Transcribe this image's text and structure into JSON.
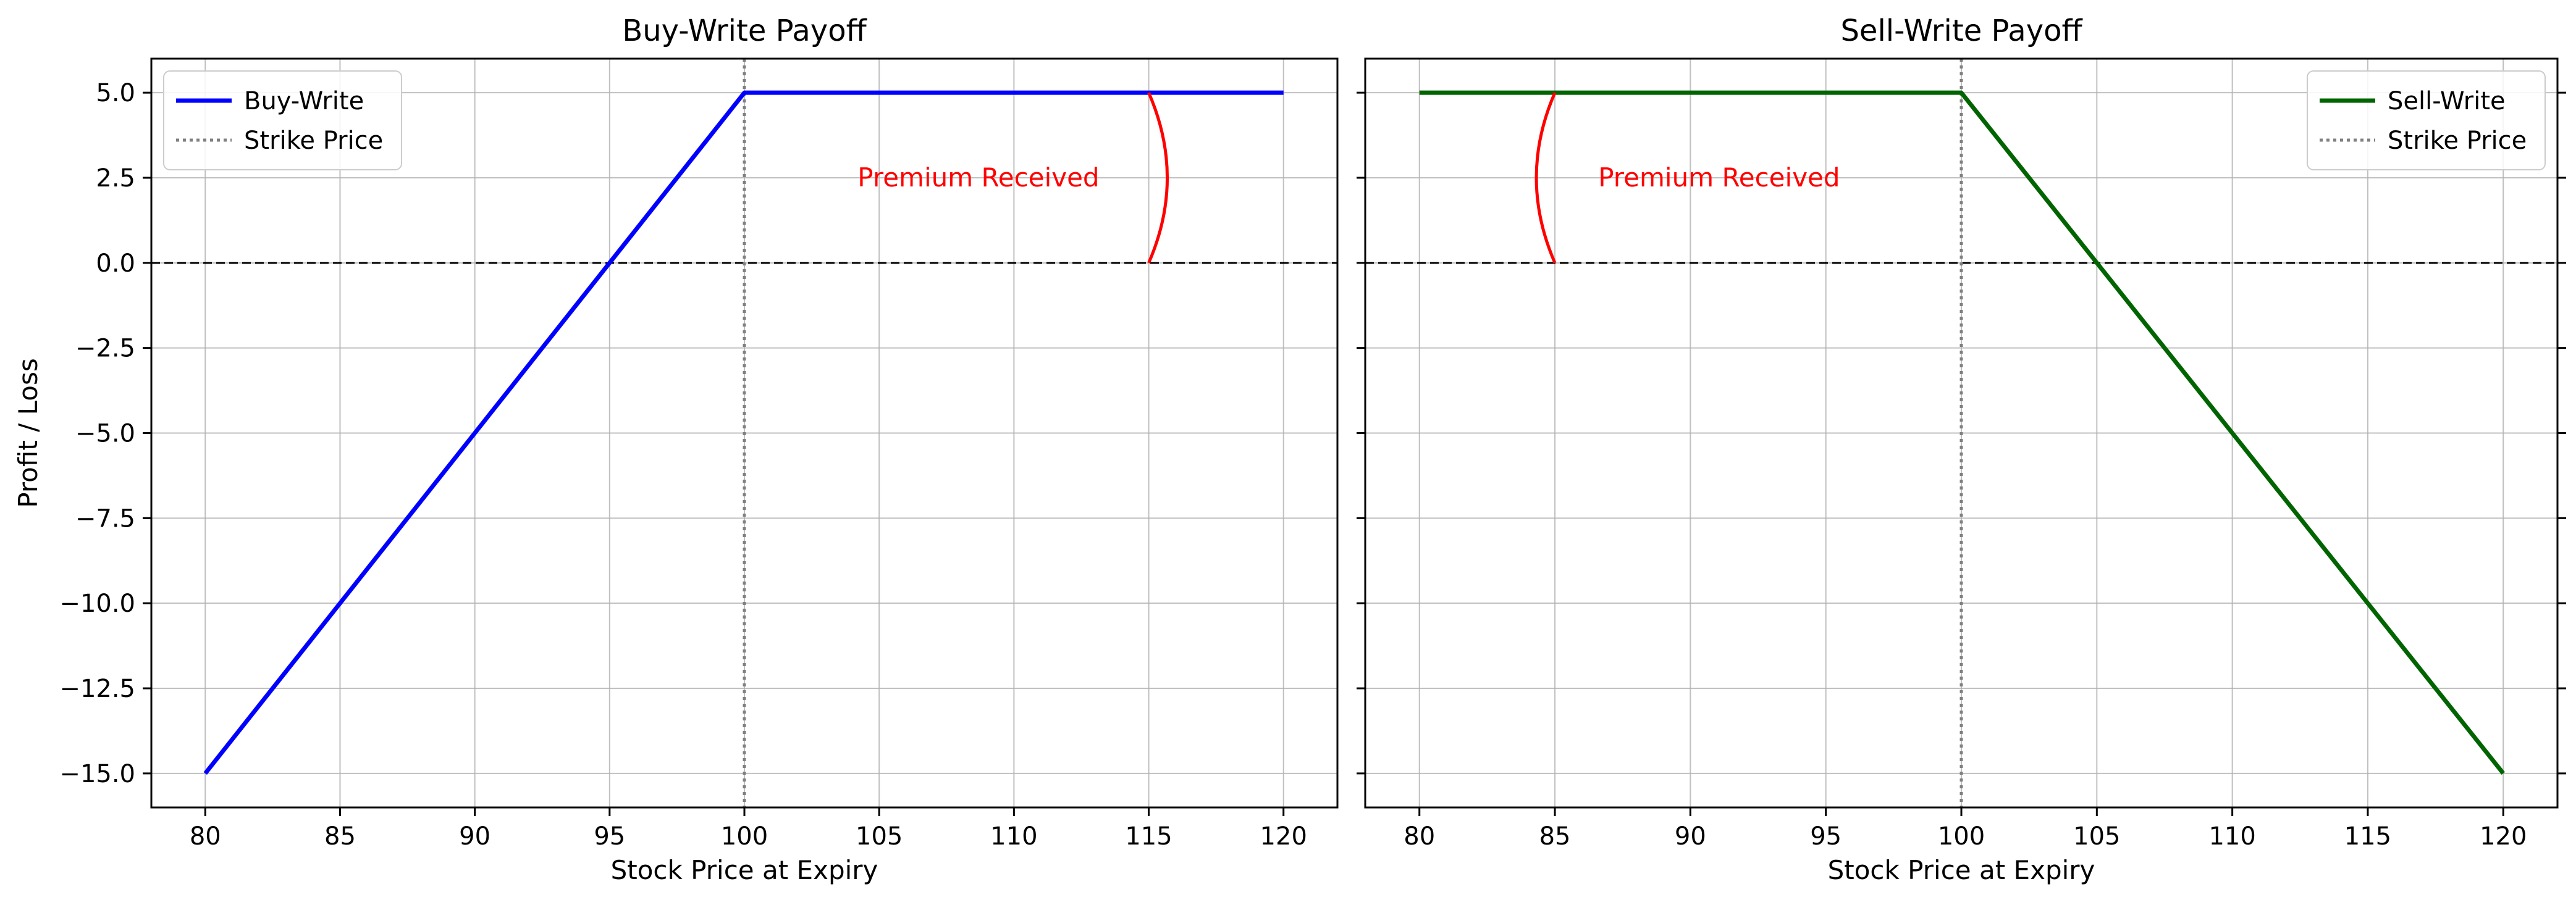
{
  "chart_data": [
    {
      "type": "line",
      "title": "Buy-Write Payoff",
      "xlabel": "Stock Price at Expiry",
      "ylabel": "Profit / Loss",
      "xlim": [
        78,
        122
      ],
      "ylim": [
        -16,
        6
      ],
      "xticks": [
        80,
        85,
        90,
        95,
        100,
        105,
        110,
        115,
        120
      ],
      "yticks": [
        5.0,
        2.5,
        0.0,
        -2.5,
        -5.0,
        -7.5,
        -10.0,
        -12.5,
        -15.0
      ],
      "ytick_labels": [
        "5.0",
        "2.5",
        "0.0",
        "−2.5",
        "−5.0",
        "−7.5",
        "−10.0",
        "−12.5",
        "−15.0"
      ],
      "grid": true,
      "legend_position": "upper-left",
      "series": [
        {
          "name": "Buy-Write",
          "color": "#0000ff",
          "x": [
            80,
            100,
            120
          ],
          "y": [
            -15,
            5,
            5
          ]
        }
      ],
      "strike": {
        "label": "Strike Price",
        "x": 100,
        "color": "#808080"
      },
      "zero_line": {
        "y": 0
      },
      "premium_arc": {
        "x": 115,
        "y_from": 0,
        "y_to": 5,
        "bulge": 1,
        "color": "#ff0000"
      },
      "annotation": {
        "text": "Premium Received",
        "x": 104.2,
        "y": 2.5,
        "color": "#ff0000"
      }
    },
    {
      "type": "line",
      "title": "Sell-Write Payoff",
      "xlabel": "Stock Price at Expiry",
      "ylabel": "",
      "xlim": [
        78,
        122
      ],
      "ylim": [
        -16,
        6
      ],
      "xticks": [
        80,
        85,
        90,
        95,
        100,
        105,
        110,
        115,
        120
      ],
      "yticks": [
        5.0,
        2.5,
        0.0,
        -2.5,
        -5.0,
        -7.5,
        -10.0,
        -12.5,
        -15.0
      ],
      "ytick_labels": [],
      "grid": true,
      "legend_position": "upper-right",
      "series": [
        {
          "name": "Sell-Write",
          "color": "#006400",
          "x": [
            80,
            100,
            120
          ],
          "y": [
            5,
            5,
            -15
          ]
        }
      ],
      "strike": {
        "label": "Strike Price",
        "x": 100,
        "color": "#808080"
      },
      "zero_line": {
        "y": 0
      },
      "premium_arc": {
        "x": 85,
        "y_from": 0,
        "y_to": 5,
        "bulge": -1,
        "color": "#ff0000"
      },
      "annotation": {
        "text": "Premium Received",
        "x": 86.6,
        "y": 2.5,
        "color": "#ff0000"
      }
    }
  ]
}
